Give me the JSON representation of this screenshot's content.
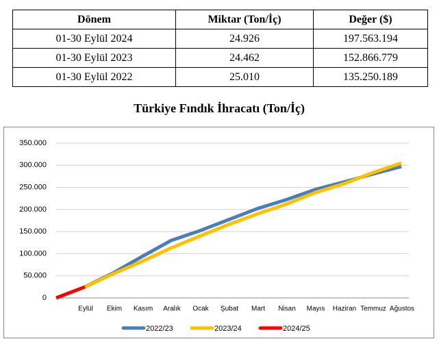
{
  "table": {
    "header": [
      "Dönem",
      "Miktar (Ton/İç)",
      "Değer ($)"
    ],
    "rows": [
      [
        "01-30 Eylül 2024",
        "24.926",
        "197.563.194"
      ],
      [
        "01-30 Eylül 2023",
        "24.462",
        "152.866.779"
      ],
      [
        "01-30 Eylül 2022",
        "25.010",
        "135.250.189"
      ]
    ]
  },
  "chart_data": {
    "type": "line",
    "title": "Türkiye Fındık İhracatı (Ton/İç)",
    "categories": [
      null,
      "Eylül",
      "Ekim",
      "Kasım",
      "Aralık",
      "Ocak",
      "Şubat",
      "Mart",
      "Nisan",
      "Mayıs",
      "Haziran",
      "Temmuz",
      "Ağustos"
    ],
    "series": [
      {
        "name": "2022/23",
        "color": "#4a7ebb",
        "values": [
          null,
          25010,
          57000,
          94000,
          130000,
          152000,
          177000,
          202000,
          222000,
          245000,
          262000,
          280000,
          297000
        ]
      },
      {
        "name": "2023/24",
        "color": "#ffc000",
        "values": [
          null,
          24462,
          55000,
          83000,
          113000,
          140000,
          166000,
          190000,
          212000,
          238000,
          258000,
          283000,
          305000
        ]
      },
      {
        "name": "2024/25",
        "color": "#ff0000",
        "values": [
          0,
          24926,
          null,
          null,
          null,
          null,
          null,
          null,
          null,
          null,
          null,
          null,
          null
        ]
      }
    ],
    "ylim": [
      0,
      350000
    ],
    "yticks": [
      0,
      {
        "value": 50000,
        "label": "50.000"
      },
      {
        "value": 100000,
        "label": "100.000"
      },
      {
        "value": 150000,
        "label": "150.000"
      },
      {
        "value": 200000,
        "label": "200.000"
      },
      {
        "value": 250000,
        "label": "250.000"
      },
      {
        "value": 300000,
        "label": "300.000"
      },
      {
        "value": 350000,
        "label": "350.000"
      }
    ],
    "grid": true,
    "legend": "bottom"
  }
}
